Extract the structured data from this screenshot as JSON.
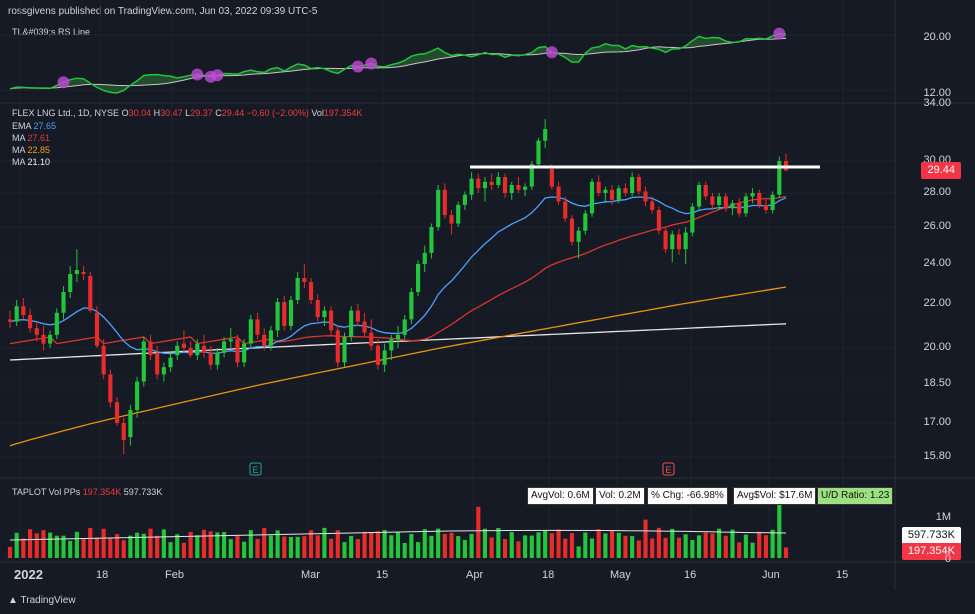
{
  "header": {
    "published": "rossgivens published on TradingView.com, Jun 03, 2022 09:39 UTC-5"
  },
  "rs_pane": {
    "title": "TL&#039;s RS Line",
    "ticks": [
      "20.00",
      "12.00"
    ]
  },
  "legend": {
    "symbol": "FLEX LNG Ltd., 1D, NYSE",
    "o_label": "O",
    "o": "30.04",
    "h_label": "H",
    "h": "30.47",
    "l_label": "L",
    "l": "29.37",
    "c_label": "C",
    "c": "29.44",
    "chg": "−0.60 (−2.00%)",
    "vol_label": "Vol",
    "vol": "197.354K",
    "ema_label": "EMA",
    "ema": "27.65",
    "ma1_label": "MA",
    "ma1": "27.61",
    "ma2_label": "MA",
    "ma2": "22.85",
    "ma3_label": "MA",
    "ma3": "21.10"
  },
  "price_axis": {
    "ticks": [
      "34.00",
      "30.00",
      "28.00",
      "26.00",
      "24.00",
      "22.00",
      "20.00",
      "18.50",
      "17.00",
      "15.80"
    ],
    "last_price": "29.44"
  },
  "volume_pane": {
    "label": "TAPLOT Vol PPs",
    "v1": "197.354K",
    "v2": "597.733K",
    "stats": {
      "avgvol": "AvgVol: 0.6M",
      "vol": "Vol: 0.2M",
      "chg": "% Chg: -66.98%",
      "avgdollar": "Avg$Vol: $17.6M",
      "ud": "U/D Ratio: 1.23"
    },
    "axis": {
      "tick": "1M",
      "ma_badge": "597.733K",
      "vol_badge": "197.354K",
      "zero": "0"
    }
  },
  "x_axis": {
    "ticks": [
      "2022",
      "18",
      "Feb",
      "Mar",
      "15",
      "Apr",
      "18",
      "May",
      "16",
      "Jun",
      "15"
    ]
  },
  "events": [
    "E",
    "E"
  ],
  "footer": {
    "brand": "TradingView"
  },
  "colors": {
    "up": "#22c53b",
    "down": "#e82b2b",
    "ema": "#4aa3ff",
    "ma50": "#d8362c",
    "ma150": "#e8920f",
    "ma200": "#e6e6e6",
    "bg": "#161a25"
  },
  "chart_data": {
    "type": "candlestick",
    "symbol": "FLEX LNG Ltd., 1D, NYSE",
    "candles": [
      [
        21.3,
        21.7,
        20.9,
        21.2
      ],
      [
        21.2,
        22.2,
        21.0,
        21.9
      ],
      [
        21.9,
        22.3,
        21.3,
        21.5
      ],
      [
        21.5,
        21.8,
        20.7,
        20.9
      ],
      [
        20.9,
        21.2,
        20.3,
        20.6
      ],
      [
        20.6,
        21.0,
        19.9,
        20.2
      ],
      [
        20.2,
        20.8,
        20.0,
        20.6
      ],
      [
        20.6,
        21.8,
        20.4,
        21.6
      ],
      [
        21.6,
        22.9,
        21.3,
        22.6
      ],
      [
        22.6,
        23.9,
        22.3,
        23.5
      ],
      [
        23.5,
        24.8,
        23.1,
        23.7
      ],
      [
        23.6,
        23.9,
        23.2,
        23.5
      ],
      [
        23.4,
        23.6,
        21.6,
        21.7
      ],
      [
        21.6,
        21.9,
        20.0,
        20.1
      ],
      [
        20.1,
        20.4,
        18.7,
        18.9
      ],
      [
        18.9,
        19.1,
        17.6,
        17.8
      ],
      [
        17.8,
        18.0,
        16.9,
        17.0
      ],
      [
        17.0,
        17.2,
        15.9,
        16.4
      ],
      [
        16.5,
        17.7,
        16.2,
        17.5
      ],
      [
        17.5,
        18.8,
        17.2,
        18.6
      ],
      [
        18.6,
        20.5,
        18.4,
        20.3
      ],
      [
        20.3,
        20.6,
        19.5,
        19.7
      ],
      [
        19.8,
        20.1,
        18.7,
        18.9
      ],
      [
        18.9,
        19.4,
        18.6,
        19.2
      ],
      [
        19.2,
        19.8,
        19.0,
        19.6
      ],
      [
        19.7,
        20.3,
        19.5,
        20.1
      ],
      [
        20.2,
        20.8,
        19.8,
        20.0
      ],
      [
        20.0,
        20.3,
        19.6,
        19.7
      ],
      [
        19.7,
        20.4,
        19.5,
        20.2
      ],
      [
        20.1,
        20.6,
        19.6,
        19.8
      ],
      [
        19.8,
        20.1,
        19.1,
        19.3
      ],
      [
        19.3,
        20.0,
        19.1,
        19.8
      ],
      [
        19.8,
        20.5,
        19.6,
        20.3
      ],
      [
        20.3,
        20.9,
        20.0,
        20.4
      ],
      [
        20.4,
        20.6,
        19.2,
        19.4
      ],
      [
        19.4,
        20.4,
        19.2,
        20.2
      ],
      [
        20.2,
        21.5,
        20.0,
        21.3
      ],
      [
        21.3,
        21.6,
        20.4,
        20.6
      ],
      [
        20.6,
        20.9,
        19.9,
        20.1
      ],
      [
        20.1,
        21.0,
        19.9,
        20.8
      ],
      [
        20.8,
        22.3,
        20.5,
        22.1
      ],
      [
        22.1,
        22.4,
        20.8,
        21.0
      ],
      [
        21.0,
        22.4,
        20.8,
        22.2
      ],
      [
        22.2,
        23.6,
        22.0,
        23.3
      ],
      [
        23.3,
        24.0,
        22.8,
        23.1
      ],
      [
        23.1,
        23.3,
        22.0,
        22.2
      ],
      [
        22.2,
        22.5,
        21.2,
        21.4
      ],
      [
        21.4,
        21.9,
        21.0,
        21.7
      ],
      [
        21.7,
        21.9,
        20.6,
        20.8
      ],
      [
        20.8,
        21.0,
        19.2,
        19.4
      ],
      [
        19.4,
        20.7,
        19.2,
        20.5
      ],
      [
        20.5,
        21.9,
        20.3,
        21.7
      ],
      [
        21.7,
        22.0,
        21.0,
        21.2
      ],
      [
        21.2,
        21.6,
        20.5,
        20.7
      ],
      [
        20.7,
        21.3,
        19.9,
        20.1
      ],
      [
        20.1,
        20.4,
        19.1,
        19.3
      ],
      [
        19.3,
        20.2,
        19.0,
        19.9
      ],
      [
        19.9,
        20.6,
        19.5,
        20.4
      ],
      [
        20.4,
        21.0,
        20.0,
        20.6
      ],
      [
        20.6,
        21.5,
        20.4,
        21.3
      ],
      [
        21.3,
        22.8,
        21.1,
        22.6
      ],
      [
        22.6,
        24.2,
        22.4,
        24.0
      ],
      [
        24.0,
        25.0,
        23.6,
        24.6
      ],
      [
        24.6,
        26.2,
        24.3,
        26.0
      ],
      [
        26.0,
        28.5,
        25.8,
        28.2
      ],
      [
        28.2,
        28.6,
        26.5,
        26.7
      ],
      [
        26.7,
        27.0,
        25.6,
        26.2
      ],
      [
        26.2,
        27.5,
        26.0,
        27.3
      ],
      [
        27.3,
        28.1,
        27.0,
        27.9
      ],
      [
        27.9,
        29.3,
        27.6,
        28.9
      ],
      [
        28.9,
        29.2,
        28.0,
        28.3
      ],
      [
        28.3,
        29.0,
        27.5,
        28.7
      ],
      [
        28.7,
        29.2,
        28.2,
        28.5
      ],
      [
        28.5,
        29.3,
        28.3,
        29.0
      ],
      [
        29.0,
        29.2,
        27.7,
        28.0
      ],
      [
        28.0,
        28.7,
        27.6,
        28.5
      ],
      [
        28.5,
        29.0,
        28.0,
        28.2
      ],
      [
        28.2,
        28.6,
        27.8,
        28.4
      ],
      [
        28.4,
        30.0,
        28.2,
        29.8
      ],
      [
        29.8,
        31.6,
        29.6,
        31.4
      ],
      [
        31.4,
        32.9,
        30.9,
        32.2
      ],
      [
        29.5,
        29.8,
        28.2,
        28.4
      ],
      [
        28.4,
        28.7,
        27.3,
        27.5
      ],
      [
        27.5,
        27.8,
        26.3,
        26.5
      ],
      [
        26.5,
        26.7,
        25.0,
        25.2
      ],
      [
        25.2,
        26.0,
        24.3,
        25.8
      ],
      [
        25.8,
        27.0,
        25.6,
        26.8
      ],
      [
        26.8,
        28.9,
        26.6,
        28.7
      ],
      [
        28.7,
        29.1,
        27.8,
        28.0
      ],
      [
        28.0,
        28.4,
        27.5,
        28.2
      ],
      [
        28.2,
        28.5,
        27.3,
        27.6
      ],
      [
        27.6,
        28.5,
        27.4,
        28.3
      ],
      [
        28.3,
        28.6,
        27.8,
        28.0
      ],
      [
        28.0,
        29.3,
        27.8,
        29.0
      ],
      [
        29.0,
        29.2,
        27.9,
        28.1
      ],
      [
        28.1,
        28.4,
        27.2,
        27.5
      ],
      [
        27.5,
        27.8,
        26.8,
        27.0
      ],
      [
        27.0,
        27.2,
        25.6,
        25.8
      ],
      [
        25.8,
        26.0,
        24.6,
        24.8
      ],
      [
        24.8,
        25.8,
        24.1,
        25.6
      ],
      [
        25.6,
        25.9,
        24.5,
        24.8
      ],
      [
        24.8,
        26.0,
        24.0,
        25.7
      ],
      [
        25.7,
        27.4,
        25.5,
        27.2
      ],
      [
        27.2,
        28.7,
        27.0,
        28.5
      ],
      [
        28.5,
        28.7,
        27.6,
        27.8
      ],
      [
        27.8,
        28.0,
        27.0,
        27.3
      ],
      [
        27.3,
        28.0,
        27.0,
        27.8
      ],
      [
        27.8,
        28.0,
        26.9,
        27.1
      ],
      [
        27.1,
        27.6,
        26.7,
        27.4
      ],
      [
        27.4,
        27.7,
        26.6,
        26.8
      ],
      [
        26.8,
        28.0,
        26.6,
        27.8
      ],
      [
        27.8,
        28.3,
        27.4,
        28.0
      ],
      [
        28.0,
        28.2,
        27.1,
        27.3
      ],
      [
        27.3,
        27.6,
        26.8,
        27.0
      ],
      [
        27.0,
        28.1,
        26.8,
        27.9
      ],
      [
        27.9,
        30.3,
        27.7,
        30.0
      ],
      [
        30.0,
        30.5,
        29.4,
        29.4
      ]
    ],
    "resistance": 29.7,
    "rs_line": {
      "ticks": [
        20.0,
        12.0
      ]
    },
    "volume_ma": 597733,
    "last_volume": 197354,
    "ema_last": 27.65,
    "ma1_last": 27.61,
    "ma2_last": 22.85,
    "ma3_last": 21.1
  }
}
